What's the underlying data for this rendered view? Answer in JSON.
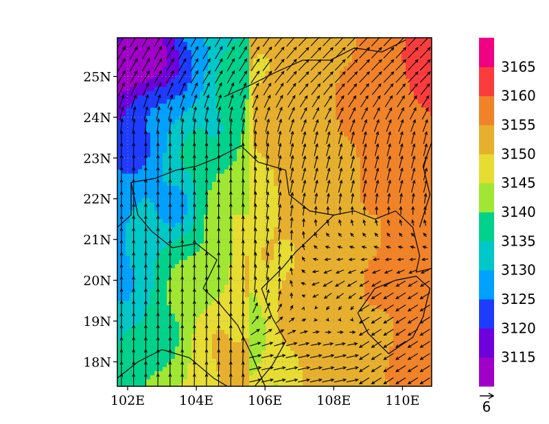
{
  "map": {
    "lon_range": [
      101.7,
      110.85
    ],
    "lat_range": [
      17.4,
      25.95
    ],
    "x_ticks": [
      {
        "lon": 102,
        "label": "102E"
      },
      {
        "lon": 104,
        "label": "104E"
      },
      {
        "lon": 106,
        "label": "106E"
      },
      {
        "lon": 108,
        "label": "108E"
      },
      {
        "lon": 110,
        "label": "110E"
      }
    ],
    "y_ticks": [
      {
        "lat": 18,
        "label": "18N"
      },
      {
        "lat": 19,
        "label": "19N"
      },
      {
        "lat": 20,
        "label": "20N"
      },
      {
        "lat": 21,
        "label": "21N"
      },
      {
        "lat": 22,
        "label": "22N"
      },
      {
        "lat": 23,
        "label": "23N"
      },
      {
        "lat": 24,
        "label": "24N"
      },
      {
        "lat": 25,
        "label": "25N"
      }
    ],
    "reference_vector": {
      "label": "6"
    }
  },
  "colorbar": {
    "levels": [
      3115,
      3120,
      3125,
      3130,
      3135,
      3140,
      3145,
      3150,
      3155,
      3160,
      3165
    ],
    "labels": [
      "3115",
      "3120",
      "3125",
      "3130",
      "3135",
      "3140",
      "3145",
      "3150",
      "3155",
      "3160",
      "3165"
    ],
    "colors": [
      "#a000c8",
      "#6e00dc",
      "#1e3cff",
      "#00a0ff",
      "#00c8c8",
      "#00d28c",
      "#a0e632",
      "#e6dc32",
      "#e6af2d",
      "#f08228",
      "#fa3c3c",
      "#f00082"
    ]
  }
}
